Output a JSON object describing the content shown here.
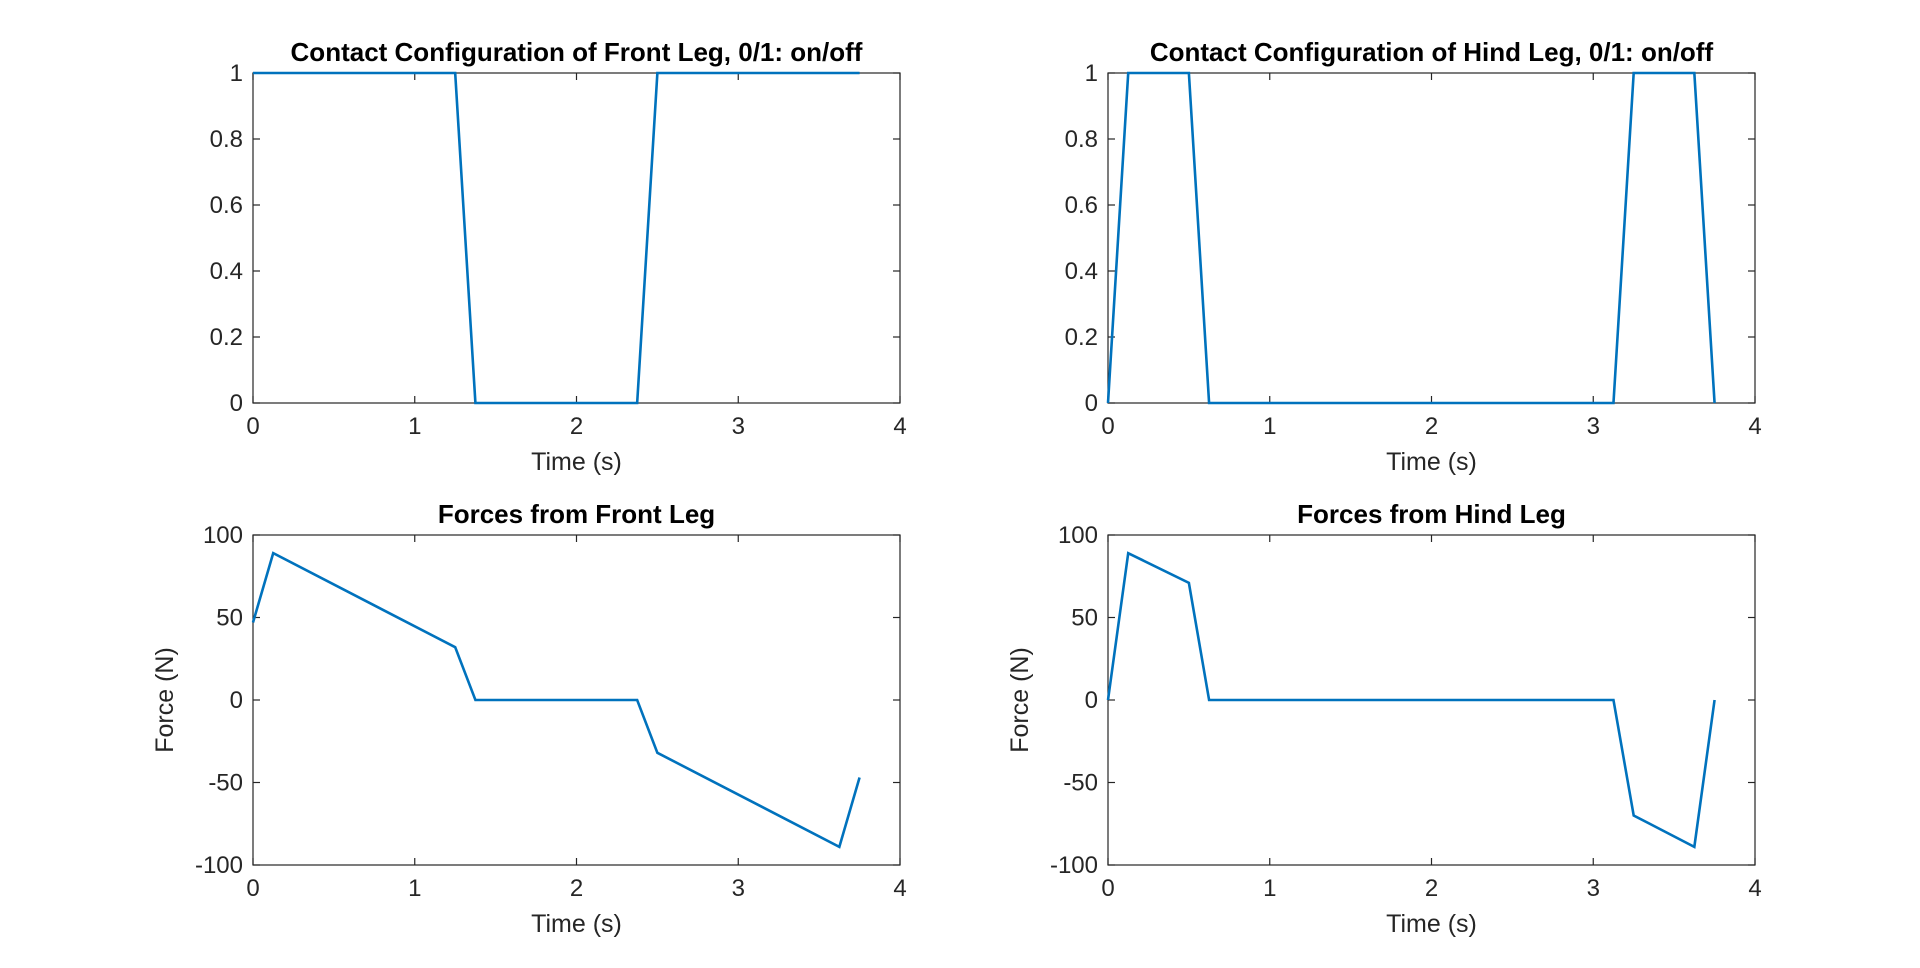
{
  "chart_data": [
    {
      "id": "front-contact",
      "type": "line",
      "title": "Contact Configuration of Front Leg, 0/1: on/off",
      "xlabel": "Time (s)",
      "ylabel": "",
      "xlim": [
        0,
        4
      ],
      "ylim": [
        0,
        1
      ],
      "xticks": [
        "0",
        "1",
        "2",
        "3",
        "4"
      ],
      "yticks": [
        "0",
        "0.2",
        "0.4",
        "0.6",
        "0.8",
        "1"
      ],
      "grid": false,
      "legend": "none",
      "series": [
        {
          "color": "#0072BD",
          "x": [
            0,
            1.25,
            1.375,
            2.375,
            2.5,
            3.75
          ],
          "y": [
            1,
            1,
            0,
            0,
            1,
            1
          ]
        }
      ]
    },
    {
      "id": "hind-contact",
      "type": "line",
      "title": "Contact Configuration of Hind Leg, 0/1: on/off",
      "xlabel": "Time (s)",
      "ylabel": "",
      "xlim": [
        0,
        4
      ],
      "ylim": [
        0,
        1
      ],
      "xticks": [
        "0",
        "1",
        "2",
        "3",
        "4"
      ],
      "yticks": [
        "0",
        "0.2",
        "0.4",
        "0.6",
        "0.8",
        "1"
      ],
      "grid": false,
      "legend": "none",
      "series": [
        {
          "color": "#0072BD",
          "x": [
            0,
            0.125,
            0.5,
            0.625,
            3.125,
            3.25,
            3.625,
            3.75
          ],
          "y": [
            0,
            1,
            1,
            0,
            0,
            1,
            1,
            0
          ]
        }
      ]
    },
    {
      "id": "front-force",
      "type": "line",
      "title": "Forces from Front Leg",
      "xlabel": "Time (s)",
      "ylabel": "Force (N)",
      "xlim": [
        0,
        4
      ],
      "ylim": [
        -100,
        100
      ],
      "xticks": [
        "0",
        "1",
        "2",
        "3",
        "4"
      ],
      "yticks": [
        "-100",
        "-50",
        "0",
        "50",
        "100"
      ],
      "grid": false,
      "legend": "none",
      "series": [
        {
          "color": "#0072BD",
          "x": [
            0,
            0.125,
            1.25,
            1.375,
            2.375,
            2.5,
            3.625,
            3.75
          ],
          "y": [
            47,
            89,
            32,
            0,
            0,
            -32,
            -89,
            -47
          ]
        }
      ]
    },
    {
      "id": "hind-force",
      "type": "line",
      "title": "Forces from Hind Leg",
      "xlabel": "Time (s)",
      "ylabel": "Force (N)",
      "xlim": [
        0,
        4
      ],
      "ylim": [
        -100,
        100
      ],
      "xticks": [
        "0",
        "1",
        "2",
        "3",
        "4"
      ],
      "yticks": [
        "-100",
        "-50",
        "0",
        "50",
        "100"
      ],
      "grid": false,
      "legend": "none",
      "series": [
        {
          "color": "#0072BD",
          "x": [
            0,
            0.125,
            0.5,
            0.625,
            3.125,
            3.25,
            3.625,
            3.75
          ],
          "y": [
            0,
            89,
            71,
            0,
            0,
            -70,
            -89,
            0
          ]
        }
      ]
    }
  ]
}
